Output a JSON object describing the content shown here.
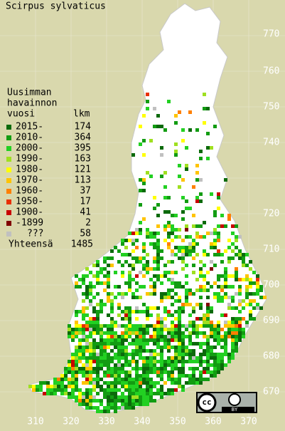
{
  "title": "Scirpus sylvaticus",
  "legend": {
    "heading": [
      "Uusimman",
      "havainnon",
      "vuosi"
    ],
    "count_heading": "lkm",
    "items": [
      {
        "label": "2015-",
        "count": 174,
        "color": "#0b6a0b"
      },
      {
        "label": "2010-",
        "count": 364,
        "color": "#129c12"
      },
      {
        "label": "2000-",
        "count": 395,
        "color": "#22d022"
      },
      {
        "label": "1990-",
        "count": 163,
        "color": "#9fe020"
      },
      {
        "label": "1980-",
        "count": 121,
        "color": "#ffff00"
      },
      {
        "label": "1970-",
        "count": 113,
        "color": "#ffc400"
      },
      {
        "label": "1960-",
        "count": 37,
        "color": "#ff8000"
      },
      {
        "label": "1950-",
        "count": 17,
        "color": "#e83000"
      },
      {
        "label": "1900-",
        "count": 41,
        "color": "#c80000"
      },
      {
        "label": "-1899",
        "count": 2,
        "color": "#800000"
      },
      {
        "label": "???",
        "count": 58,
        "color": "#c0c0c0"
      }
    ],
    "total_label": "Yhteensä",
    "total": 1485
  },
  "north_labels": [
    770,
    760,
    750,
    740,
    720,
    710,
    700,
    690,
    680,
    670
  ],
  "east_labels": [
    310,
    320,
    330,
    340,
    350,
    360,
    370
  ],
  "badge": {
    "cc": "cc",
    "by": "BY"
  }
}
